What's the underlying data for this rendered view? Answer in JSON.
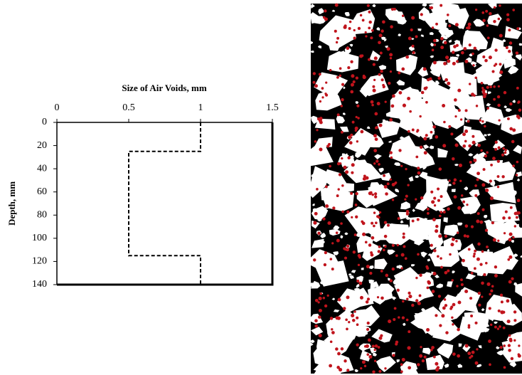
{
  "chart_data": {
    "type": "line",
    "xlabel": "Size of Air Voids,  mm",
    "ylabel": "Depth,  mm",
    "xlim": [
      0,
      1.5
    ],
    "xticks": [
      0,
      0.5,
      1,
      1.5
    ],
    "ylim": [
      0,
      140
    ],
    "yticks": [
      0,
      20,
      40,
      60,
      80,
      100,
      120,
      140
    ],
    "y_inverted": true,
    "x_axis_position": "top",
    "series": [
      {
        "color": "#000000",
        "dashed": true,
        "x": [
          1,
          1,
          0.5,
          0.5,
          1,
          1
        ],
        "values": [
          0,
          25,
          25,
          115,
          115,
          140
        ]
      }
    ]
  }
}
